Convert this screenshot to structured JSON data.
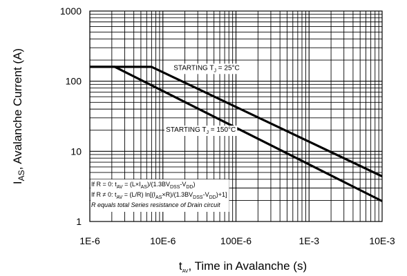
{
  "chart_data": {
    "type": "line",
    "title": "",
    "x_scale": "log",
    "y_scale": "log",
    "xlim": [
      1e-06,
      0.01
    ],
    "ylim": [
      1,
      1000
    ],
    "grid": true,
    "xlabel": {
      "main": "t",
      "sub": "AV",
      "rest": ", Time in Avalanche (s)"
    },
    "ylabel": {
      "main": "I",
      "sub": "AS",
      "rest": ", Avalanche Current (A)"
    },
    "x_ticks": [
      {
        "value": 1e-06,
        "label": "1E-6"
      },
      {
        "value": 1e-05,
        "label": "10E-6"
      },
      {
        "value": 0.0001,
        "label": "100E-6"
      },
      {
        "value": 0.001,
        "label": "1E-3"
      },
      {
        "value": 0.01,
        "label": "10E-3"
      }
    ],
    "y_ticks": [
      {
        "value": 1,
        "label": "1"
      },
      {
        "value": 10,
        "label": "10"
      },
      {
        "value": 100,
        "label": "100"
      },
      {
        "value": 1000,
        "label": "1000"
      }
    ],
    "series": [
      {
        "name": "STARTING TJ = 25°C",
        "label": {
          "pre": "STARTING T",
          "sub": "J",
          "post": " = 25°C"
        },
        "label_at": {
          "x": 1.4e-05,
          "y": 145
        },
        "points": [
          [
            1e-06,
            160
          ],
          [
            7e-06,
            160
          ],
          [
            0.01,
            4.4
          ]
        ]
      },
      {
        "name": "STARTING TJ = 150°C",
        "label": {
          "pre": "STARTING T",
          "sub": "J",
          "post": " = 150°C"
        },
        "label_at": {
          "x": 1.1e-05,
          "y": 19
        },
        "points": [
          [
            1e-06,
            160
          ],
          [
            2.2e-06,
            160
          ],
          [
            0.01,
            1.95
          ]
        ]
      }
    ],
    "notes": [
      {
        "parts": [
          [
            "If R = 0: t",
            ""
          ],
          [
            "AV",
            "sub"
          ],
          [
            " = (L×I",
            ""
          ],
          [
            "AS",
            "sub"
          ],
          [
            ")/(1.3BV",
            ""
          ],
          [
            "DSS",
            "sub"
          ],
          [
            "-V",
            ""
          ],
          [
            "DD",
            "sub"
          ],
          [
            ")",
            ""
          ]
        ]
      },
      {
        "parts": [
          [
            "If R ≠ 0: t",
            ""
          ],
          [
            "AV",
            "sub"
          ],
          [
            " = (L/R) ln[(I",
            ""
          ],
          [
            "AS",
            "sub"
          ],
          [
            "×R)/(1.3BV",
            ""
          ],
          [
            "DSS",
            "sub"
          ],
          [
            "-V",
            ""
          ],
          [
            "DD",
            "sub"
          ],
          [
            ")+1]",
            ""
          ]
        ]
      },
      {
        "italic": true,
        "parts": [
          [
            "R equals total Series resistance of Drain circuit",
            ""
          ]
        ]
      }
    ]
  }
}
